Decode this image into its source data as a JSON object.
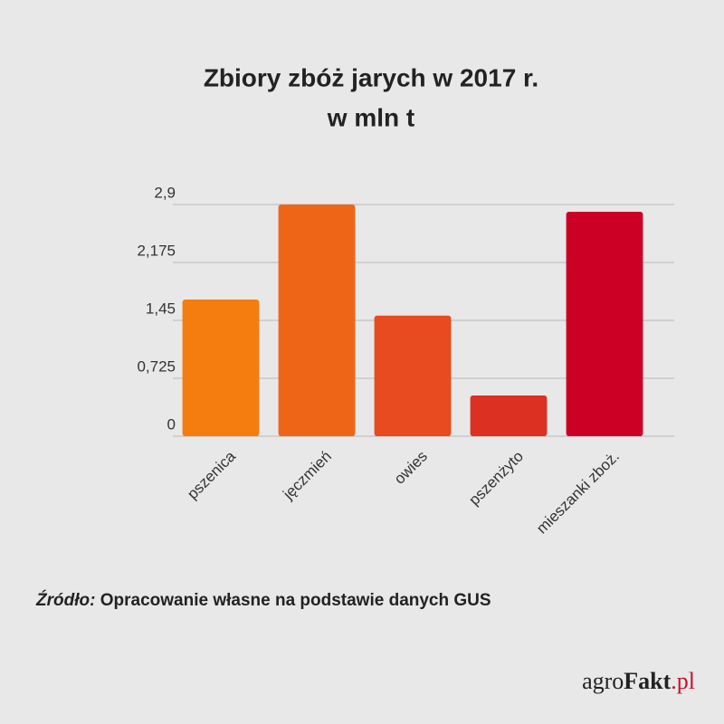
{
  "chart_data": {
    "type": "bar",
    "title": "Zbiory zbóż jarych w 2017 r.",
    "subtitle": "w mln t",
    "categories": [
      "pszenica",
      "jęczmień",
      "owies",
      "pszenżyto",
      "mieszanki zboż."
    ],
    "values": [
      1.71,
      2.9,
      1.51,
      0.51,
      2.81
    ],
    "colors": [
      "#f57c0f",
      "#ef6518",
      "#e84b1f",
      "#dc3022",
      "#cc0025"
    ],
    "ylim": [
      0,
      2.9
    ],
    "yticks": [
      0,
      {
        "value": 0.725,
        "label": "0,725"
      },
      {
        "value": 1.45,
        "label": "1,45"
      },
      {
        "value": 2.175,
        "label": "2,175"
      },
      {
        "value": 2.9,
        "label": "2,9"
      }
    ],
    "grid": true
  },
  "source": {
    "label": "Źródło:",
    "text": "Opracowanie własne na podstawie danych GUS"
  },
  "logo": {
    "part1": "agro",
    "part2": "Fakt",
    "part3": ".pl"
  }
}
